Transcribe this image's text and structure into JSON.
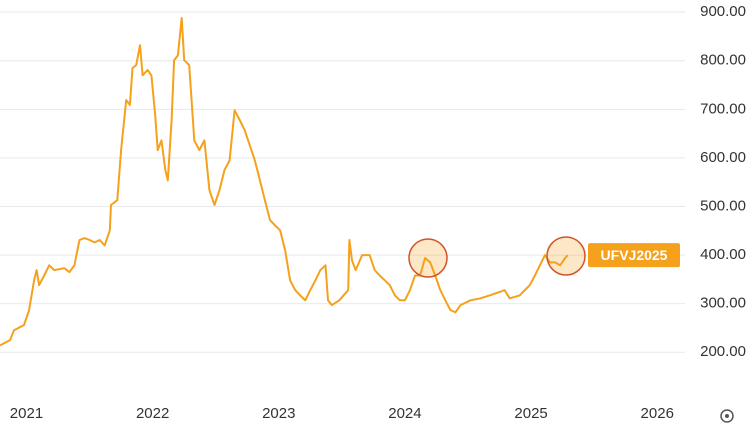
{
  "chart_data": {
    "type": "line",
    "x": [
      2020.79,
      2020.87,
      2020.9,
      2020.98,
      2021.02,
      2021.06,
      2021.08,
      2021.1,
      2021.14,
      2021.18,
      2021.22,
      2021.3,
      2021.34,
      2021.38,
      2021.42,
      2021.46,
      2021.5,
      2021.54,
      2021.58,
      2021.62,
      2021.66,
      2021.67,
      2021.72,
      2021.75,
      2021.79,
      2021.82,
      2021.84,
      2021.87,
      2021.9,
      2021.92,
      2021.96,
      2021.99,
      2022.02,
      2022.04,
      2022.07,
      2022.1,
      2022.12,
      2022.15,
      2022.17,
      2022.2,
      2022.23,
      2022.25,
      2022.29,
      2022.33,
      2022.37,
      2022.41,
      2022.45,
      2022.49,
      2022.53,
      2022.57,
      2022.61,
      2022.65,
      2022.69,
      2022.73,
      2022.77,
      2022.81,
      2022.85,
      2022.89,
      2022.93,
      2022.97,
      2023.01,
      2023.05,
      2023.09,
      2023.13,
      2023.17,
      2023.21,
      2023.25,
      2023.29,
      2023.33,
      2023.37,
      2023.39,
      2023.42,
      2023.48,
      2023.55,
      2023.56,
      2023.58,
      2023.61,
      2023.66,
      2023.72,
      2023.76,
      2023.8,
      2023.84,
      2023.88,
      2023.92,
      2023.96,
      2024.0,
      2024.04,
      2024.08,
      2024.12,
      2024.16,
      2024.2,
      2024.24,
      2024.28,
      2024.32,
      2024.36,
      2024.4,
      2024.44,
      2024.52,
      2024.6,
      2024.67,
      2024.75,
      2024.79,
      2024.83,
      2024.91,
      2024.95,
      2024.99,
      2025.03,
      2025.07,
      2025.11,
      2025.15,
      2025.19,
      2025.23,
      2025.27,
      2025.29
    ],
    "series": [
      {
        "name": "UFVJ2025",
        "color": "#f5a11c",
        "values": [
          214,
          225,
          245,
          256,
          286,
          348,
          369,
          338,
          358,
          379,
          369,
          373,
          365,
          379,
          431,
          435,
          431,
          426,
          431,
          420,
          451,
          503,
          513,
          616,
          719,
          709,
          785,
          791,
          832,
          770,
          781,
          770,
          688,
          616,
          636,
          575,
          554,
          678,
          801,
          811,
          888,
          801,
          791,
          636,
          616,
          636,
          534,
          503,
          534,
          575,
          595,
          698,
          678,
          657,
          626,
          595,
          554,
          513,
          472,
          461,
          451,
          410,
          348,
          328,
          317,
          307,
          328,
          348,
          369,
          379,
          307,
          297,
          307,
          328,
          431,
          389,
          369,
          400,
          400,
          369,
          358,
          348,
          338,
          317,
          307,
          307,
          328,
          358,
          358,
          394,
          385,
          358,
          328,
          307,
          287,
          282,
          297,
          307,
          311,
          317,
          324,
          328,
          311,
          317,
          328,
          338,
          358,
          379,
          400,
          385,
          385,
          379,
          394,
          400
        ]
      }
    ],
    "xlim": [
      2020.79,
      2026.22
    ],
    "xticks": [
      2021,
      2022,
      2023,
      2024,
      2025,
      2026
    ],
    "ylim": [
      112,
      925
    ],
    "yticks": [
      {
        "value": 200,
        "label": "200.00"
      },
      {
        "value": 300,
        "label": "300.00"
      },
      {
        "value": 400,
        "label": "400.00"
      },
      {
        "value": 500,
        "label": "500.00"
      },
      {
        "value": 600,
        "label": "600.00"
      },
      {
        "value": 700,
        "label": "700.00"
      },
      {
        "value": 800,
        "label": "800.00"
      },
      {
        "value": 900,
        "label": "900.00"
      }
    ],
    "grid": true
  }
}
